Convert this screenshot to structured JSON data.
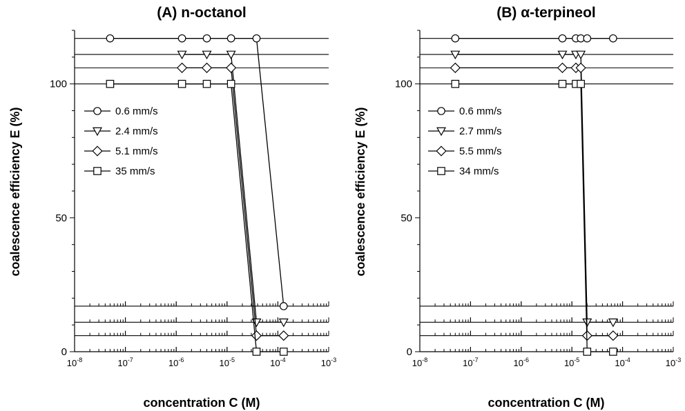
{
  "chart_data": [
    {
      "type": "line",
      "title": "(A) n-octanol",
      "xlabel": "concentration C (M)",
      "ylabel": "coalescence efficiency E (%)",
      "xscale": "log",
      "xlim": [
        1e-08,
        0.001
      ],
      "ylim": [
        0,
        120
      ],
      "yticks": [
        "0",
        "50",
        "100"
      ],
      "xticks": [
        {
          "base": "10",
          "exp": "-8"
        },
        {
          "base": "10",
          "exp": "-7"
        },
        {
          "base": "10",
          "exp": "-6"
        },
        {
          "base": "10",
          "exp": "-5"
        },
        {
          "base": "10",
          "exp": "-4"
        },
        {
          "base": "10",
          "exp": "-3"
        }
      ],
      "legend_position": "upper-left",
      "series": [
        {
          "name": "0.6 mm/s",
          "marker": "circle",
          "offset": 17,
          "x": [
            5e-08,
            1.3e-06,
            4e-06,
            1.2e-05,
            3.8e-05,
            0.00013
          ],
          "y": [
            100,
            100,
            100,
            100,
            100,
            0
          ]
        },
        {
          "name": "2.4 mm/s",
          "marker": "triangle-down",
          "offset": 11,
          "x": [
            1.3e-06,
            4e-06,
            1.2e-05,
            3.8e-05,
            0.00013
          ],
          "y": [
            100,
            100,
            100,
            0,
            0
          ]
        },
        {
          "name": "5.1 mm/s",
          "marker": "diamond",
          "offset": 6,
          "x": [
            1.3e-06,
            4e-06,
            1.2e-05,
            3.8e-05,
            0.00013
          ],
          "y": [
            100,
            100,
            100,
            0,
            0
          ]
        },
        {
          "name": "35 mm/s",
          "marker": "square",
          "offset": 0,
          "x": [
            5e-08,
            1.3e-06,
            4e-06,
            1.2e-05,
            3.8e-05,
            0.00013
          ],
          "y": [
            100,
            100,
            100,
            100,
            0,
            0
          ]
        }
      ]
    },
    {
      "type": "line",
      "title": "(B) α-terpineol",
      "xlabel": "concentration C (M)",
      "ylabel": "coalescence efficiency E (%)",
      "xscale": "log",
      "xlim": [
        1e-08,
        0.001
      ],
      "ylim": [
        0,
        120
      ],
      "yticks": [
        "0",
        "50",
        "100"
      ],
      "xticks": [
        {
          "base": "10",
          "exp": "-8"
        },
        {
          "base": "10",
          "exp": "-7"
        },
        {
          "base": "10",
          "exp": "-6"
        },
        {
          "base": "10",
          "exp": "-5"
        },
        {
          "base": "10",
          "exp": "-4"
        },
        {
          "base": "10",
          "exp": "-3"
        }
      ],
      "legend_position": "upper-left",
      "series": [
        {
          "name": "0.6 mm/s",
          "marker": "circle",
          "offset": 17,
          "x": [
            5e-08,
            6.5e-06,
            1.2e-05,
            1.5e-05,
            2e-05,
            6.5e-05
          ],
          "y": [
            100,
            100,
            100,
            100,
            100,
            100
          ]
        },
        {
          "name": "2.7 mm/s",
          "marker": "triangle-down",
          "offset": 11,
          "x": [
            5e-08,
            6.5e-06,
            1.2e-05,
            1.5e-05,
            2e-05,
            6.5e-05
          ],
          "y": [
            100,
            100,
            100,
            100,
            0,
            0
          ]
        },
        {
          "name": "5.5 mm/s",
          "marker": "diamond",
          "offset": 6,
          "x": [
            5e-08,
            6.5e-06,
            1.2e-05,
            1.5e-05,
            2e-05,
            6.5e-05
          ],
          "y": [
            100,
            100,
            100,
            100,
            0,
            0
          ]
        },
        {
          "name": "34 mm/s",
          "marker": "square",
          "offset": 0,
          "x": [
            5e-08,
            6.5e-06,
            1.2e-05,
            1.5e-05,
            2e-05,
            6.5e-05
          ],
          "y": [
            100,
            100,
            100,
            100,
            0,
            0
          ]
        }
      ]
    }
  ]
}
